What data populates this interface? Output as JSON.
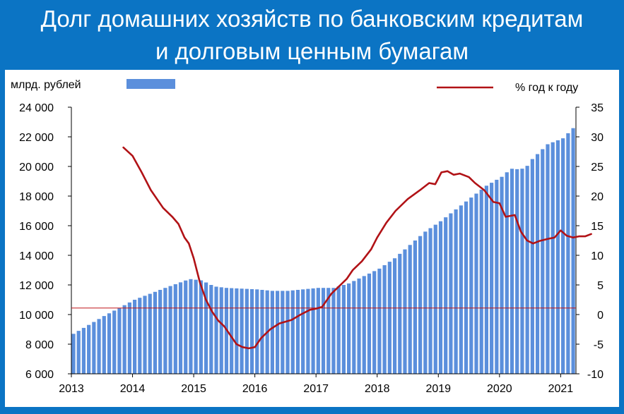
{
  "title": {
    "line1": "Долг домашних хозяйств по банковским кредитам",
    "line2": "и долговым ценным бумагам"
  },
  "colors": {
    "background": "#0b74c4",
    "bars": "#5b8fdc",
    "line": "#b11216",
    "reference_line": "#c0161a"
  },
  "chart_data": {
    "type": "bar",
    "legend": {
      "bar_label": "млрд. рублей",
      "line_label": "%  год к году",
      "position": "top"
    },
    "x_tick_labels": [
      "2013",
      "2014",
      "2015",
      "2016",
      "2017",
      "2018",
      "2019",
      "2020",
      "2021"
    ],
    "x_range": [
      2013.0,
      2021.25
    ],
    "y_left": {
      "range": [
        6000,
        24000
      ],
      "ticks": [
        6000,
        8000,
        10000,
        12000,
        14000,
        16000,
        18000,
        20000,
        22000,
        24000
      ],
      "tick_labels": [
        "6 000",
        "8 000",
        "10 000",
        "12 000",
        "14 000",
        "16 000",
        "18 000",
        "20 000",
        "22 000",
        "24 000"
      ]
    },
    "y_right": {
      "range": [
        -10,
        35
      ],
      "ticks": [
        -10,
        -5,
        0,
        5,
        10,
        15,
        20,
        25,
        30,
        35
      ],
      "tick_labels": [
        "-10",
        "-5",
        "0",
        "5",
        "10",
        "15",
        "20",
        "25",
        "30",
        "35"
      ]
    },
    "grid": false,
    "bar_series": {
      "name": "млрд. рублей",
      "anchors": [
        [
          2013.0,
          8700
        ],
        [
          2013.5,
          9900
        ],
        [
          2014.0,
          11000
        ],
        [
          2014.5,
          11800
        ],
        [
          2014.9,
          12400
        ],
        [
          2015.1,
          12300
        ],
        [
          2015.3,
          11900
        ],
        [
          2015.5,
          11800
        ],
        [
          2015.75,
          11750
        ],
        [
          2016.0,
          11700
        ],
        [
          2016.25,
          11600
        ],
        [
          2016.5,
          11600
        ],
        [
          2016.75,
          11700
        ],
        [
          2017.0,
          11800
        ],
        [
          2017.25,
          11800
        ],
        [
          2017.5,
          12100
        ],
        [
          2017.75,
          12600
        ],
        [
          2018.0,
          13100
        ],
        [
          2018.25,
          13800
        ],
        [
          2018.5,
          14700
        ],
        [
          2018.75,
          15600
        ],
        [
          2019.0,
          16300
        ],
        [
          2019.25,
          17100
        ],
        [
          2019.5,
          17900
        ],
        [
          2019.75,
          18700
        ],
        [
          2020.0,
          19300
        ],
        [
          2020.15,
          19850
        ],
        [
          2020.3,
          19800
        ],
        [
          2020.4,
          19950
        ],
        [
          2020.5,
          20500
        ],
        [
          2020.75,
          21500
        ],
        [
          2021.0,
          21900
        ],
        [
          2021.17,
          22600
        ]
      ]
    },
    "line_series": {
      "name": "%  год к году",
      "axis": "right",
      "points": [
        [
          2013.85,
          28.2
        ],
        [
          2014.0,
          26.8
        ],
        [
          2014.15,
          24
        ],
        [
          2014.3,
          21
        ],
        [
          2014.5,
          18
        ],
        [
          2014.65,
          16.5
        ],
        [
          2014.75,
          15.3
        ],
        [
          2014.85,
          13
        ],
        [
          2014.92,
          12
        ],
        [
          2015.0,
          9.5
        ],
        [
          2015.1,
          5.5
        ],
        [
          2015.2,
          2.5
        ],
        [
          2015.3,
          0.5
        ],
        [
          2015.4,
          -1
        ],
        [
          2015.5,
          -2
        ],
        [
          2015.6,
          -3.5
        ],
        [
          2015.7,
          -5
        ],
        [
          2015.8,
          -5.5
        ],
        [
          2015.9,
          -5.7
        ],
        [
          2016.0,
          -5.5
        ],
        [
          2016.1,
          -4
        ],
        [
          2016.25,
          -2.5
        ],
        [
          2016.4,
          -1.5
        ],
        [
          2016.6,
          -0.9
        ],
        [
          2016.75,
          0
        ],
        [
          2016.9,
          0.8
        ],
        [
          2017.0,
          1
        ],
        [
          2017.1,
          1.3
        ],
        [
          2017.25,
          3.5
        ],
        [
          2017.4,
          5
        ],
        [
          2017.5,
          6
        ],
        [
          2017.6,
          7.5
        ],
        [
          2017.75,
          9
        ],
        [
          2017.9,
          11
        ],
        [
          2018.0,
          13
        ],
        [
          2018.15,
          15.5
        ],
        [
          2018.3,
          17.5
        ],
        [
          2018.5,
          19.5
        ],
        [
          2018.7,
          21
        ],
        [
          2018.85,
          22.2
        ],
        [
          2018.95,
          22
        ],
        [
          2019.05,
          24
        ],
        [
          2019.15,
          24.2
        ],
        [
          2019.25,
          23.6
        ],
        [
          2019.35,
          23.8
        ],
        [
          2019.5,
          23.2
        ],
        [
          2019.6,
          22.2
        ],
        [
          2019.75,
          21
        ],
        [
          2019.9,
          19
        ],
        [
          2020.0,
          18.8
        ],
        [
          2020.1,
          16.5
        ],
        [
          2020.25,
          16.8
        ],
        [
          2020.35,
          14
        ],
        [
          2020.45,
          12.5
        ],
        [
          2020.55,
          12
        ],
        [
          2020.65,
          12.4
        ],
        [
          2020.8,
          12.8
        ],
        [
          2020.9,
          13
        ],
        [
          2021.0,
          14.2
        ],
        [
          2021.1,
          13.3
        ],
        [
          2021.2,
          13
        ],
        [
          2021.3,
          13.2
        ],
        [
          2021.4,
          13.2
        ],
        [
          2021.5,
          13.6
        ]
      ]
    },
    "reference_line": {
      "axis": "right",
      "value": 1.1
    }
  }
}
